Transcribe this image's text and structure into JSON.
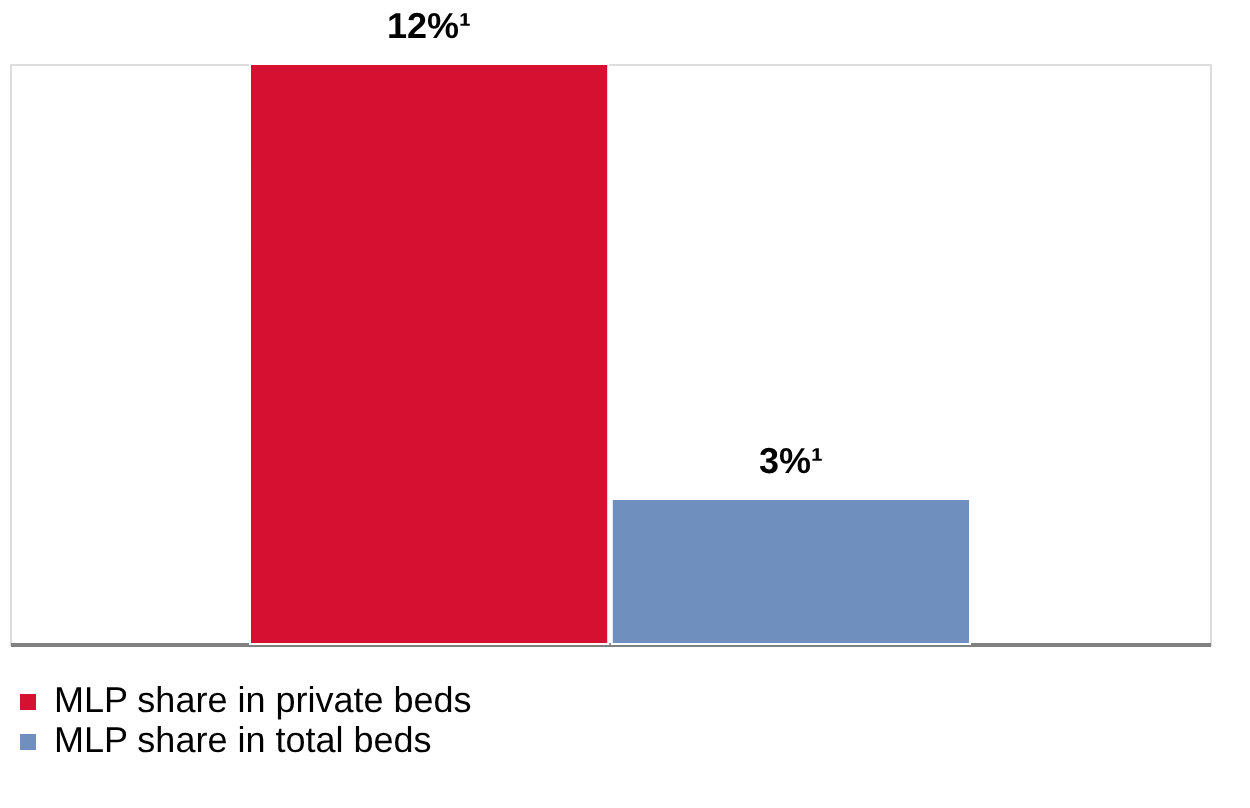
{
  "chart_data": {
    "type": "bar",
    "categories": [
      null
    ],
    "series": [
      {
        "name": "MLP share in private beds",
        "color": "#d51030",
        "values": [
          12
        ],
        "value_labels": [
          "12%¹"
        ]
      },
      {
        "name": "MLP share in total beds",
        "color": "#6f8fbf",
        "values": [
          3
        ],
        "value_labels": [
          "3%¹"
        ]
      }
    ],
    "legend": "bottom",
    "grid": false
  }
}
